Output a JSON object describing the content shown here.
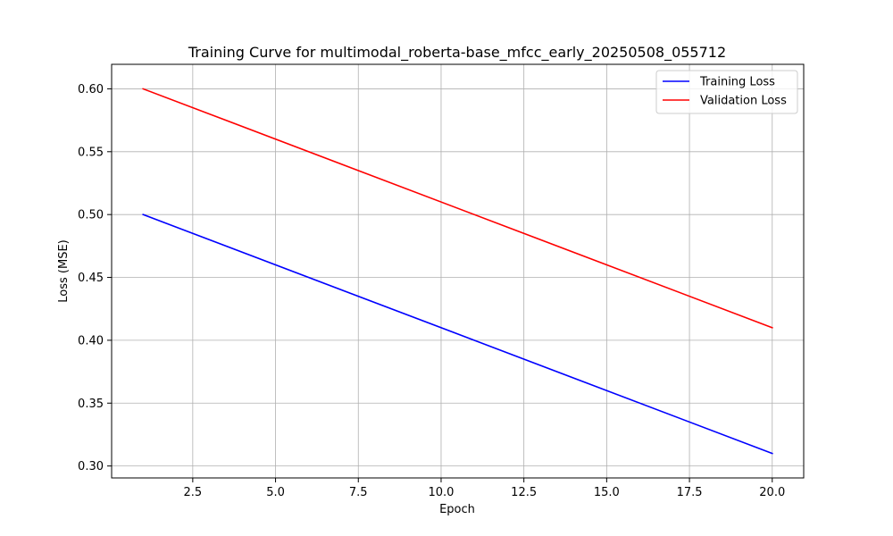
{
  "chart_data": {
    "type": "line",
    "title": "Training Curve for multimodal_roberta-base_mfcc_early_20250508_055712",
    "xlabel": "Epoch",
    "ylabel": "Loss (MSE)",
    "xlim": [
      0.05,
      20.95
    ],
    "ylim": [
      0.2905,
      0.6195
    ],
    "x_ticks": [
      2.5,
      5.0,
      7.5,
      10.0,
      12.5,
      15.0,
      17.5,
      20.0
    ],
    "x_tick_labels": [
      "2.5",
      "5.0",
      "7.5",
      "10.0",
      "12.5",
      "15.0",
      "17.5",
      "20.0"
    ],
    "y_ticks": [
      0.3,
      0.35,
      0.4,
      0.45,
      0.5,
      0.55,
      0.6
    ],
    "y_tick_labels": [
      "0.30",
      "0.35",
      "0.40",
      "0.45",
      "0.50",
      "0.55",
      "0.60"
    ],
    "grid": true,
    "legend_position": "top-right",
    "series": [
      {
        "name": "Training Loss",
        "color": "#0000ff",
        "x": [
          1,
          20
        ],
        "y": [
          0.5,
          0.31
        ]
      },
      {
        "name": "Validation Loss",
        "color": "#ff0000",
        "x": [
          1,
          20
        ],
        "y": [
          0.6,
          0.41
        ]
      }
    ]
  }
}
